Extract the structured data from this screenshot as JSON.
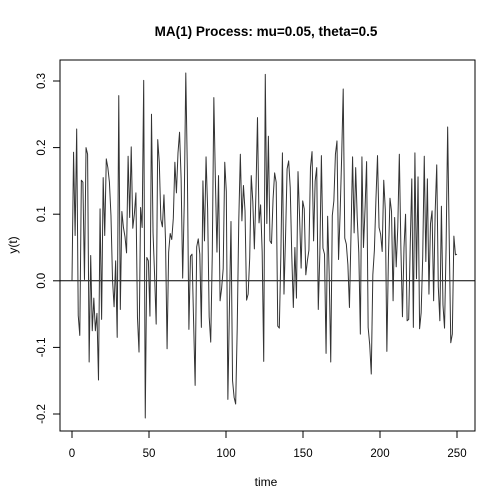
{
  "chart_data": {
    "type": "line",
    "title": "MA(1) Process: mu=0.05, theta=0.5",
    "xlabel": "time",
    "ylabel": "y(t)",
    "xlim": [
      0,
      250
    ],
    "ylim": [
      -0.2,
      0.3
    ],
    "x_ticks": [
      0,
      50,
      100,
      150,
      200,
      250
    ],
    "y_ticks": [
      -0.2,
      -0.1,
      0.0,
      0.1,
      0.2,
      0.3
    ],
    "x_tick_labels": [
      "0",
      "50",
      "100",
      "150",
      "200",
      "250"
    ],
    "y_tick_labels": [
      "-0.2",
      "-0.1",
      "0.0",
      "0.1",
      "0.2",
      "0.3"
    ],
    "reference_line": 0,
    "line_color": "#333333",
    "series": [
      {
        "values": [
          0.0,
          0.193,
          0.068,
          0.228,
          -0.052,
          -0.082,
          0.151,
          0.148,
          0.002,
          0.2,
          0.19,
          -0.122,
          0.038,
          -0.075,
          -0.026,
          -0.075,
          -0.049,
          -0.149,
          0.108,
          -0.058,
          0.155,
          0.068,
          0.183,
          0.17,
          0.148,
          0.098,
          0.001,
          -0.039,
          0.03,
          -0.085,
          0.278,
          -0.043,
          0.104,
          0.08,
          0.066,
          0.042,
          0.187,
          0.095,
          0.201,
          0.079,
          0.1,
          0.132,
          -0.055,
          -0.107,
          0.11,
          0.08,
          0.301,
          -0.206,
          0.035,
          0.03,
          -0.053,
          0.25,
          0.072,
          0.008,
          -0.065,
          0.212,
          0.178,
          0.092,
          0.081,
          0.129,
          0.061,
          -0.102,
          0.043,
          0.071,
          0.062,
          0.094,
          0.178,
          0.132,
          0.192,
          0.223,
          0.154,
          0.004,
          0.115,
          0.312,
          0.167,
          -0.073,
          0.037,
          0.04,
          -0.06,
          -0.157,
          0.051,
          0.063,
          0.04,
          -0.07,
          0.15,
          0.06,
          0.186,
          0.109,
          -0.054,
          -0.092,
          0.04,
          0.275,
          0.15,
          0.043,
          0.158,
          -0.03,
          -0.011,
          0.018,
          0.178,
          0.134,
          -0.178,
          -0.04,
          0.089,
          -0.15,
          -0.175,
          -0.185,
          -0.071,
          0.091,
          0.19,
          0.09,
          0.143,
          0.105,
          -0.029,
          -0.02,
          0.034,
          0.158,
          0.119,
          0.048,
          0.132,
          0.245,
          0.087,
          0.114,
          0.044,
          -0.121,
          0.31,
          0.086,
          0.217,
          0.06,
          0.056,
          0.123,
          0.162,
          0.148,
          -0.068,
          -0.071,
          0.04,
          0.192,
          -0.02,
          0.066,
          0.168,
          0.18,
          0.14,
          0.038,
          -0.04,
          0.05,
          -0.026,
          0.164,
          0.096,
          0.019,
          0.12,
          0.108,
          0.009,
          0.03,
          0.046,
          0.17,
          0.194,
          0.06,
          0.15,
          0.17,
          -0.043,
          0.04,
          0.188,
          0.049,
          0.04,
          -0.109,
          0.097,
          0.01,
          -0.122,
          0.098,
          0.12,
          0.19,
          0.21,
          0.032,
          0.1,
          0.186,
          0.288,
          0.064,
          0.055,
          0.024,
          -0.04,
          0.07,
          0.186,
          0.072,
          0.17,
          0.094,
          0.042,
          -0.08,
          0.186,
          0.05,
          0.108,
          0.179,
          -0.07,
          -0.096,
          -0.14,
          0.009,
          0.046,
          0.123,
          0.188,
          0.08,
          0.07,
          0.044,
          0.151,
          0.107,
          -0.106,
          0.035,
          0.124,
          0.104,
          -0.03,
          0.095,
          0.021,
          0.08,
          0.19,
          0.05,
          -0.054,
          0.05,
          0.1,
          -0.06,
          -0.058,
          0.054,
          0.153,
          -0.07,
          0.192,
          0.003,
          0.156,
          -0.072,
          -0.048,
          0.036,
          0.187,
          0.029,
          0.153,
          -0.02,
          0.086,
          0.105,
          -0.03,
          0.104,
          0.174,
          -0.009,
          -0.06,
          0.112,
          -0.036,
          -0.071,
          0.05,
          0.231,
          0.064,
          -0.093,
          -0.08,
          0.067,
          0.039,
          0.04
        ]
      }
    ]
  }
}
